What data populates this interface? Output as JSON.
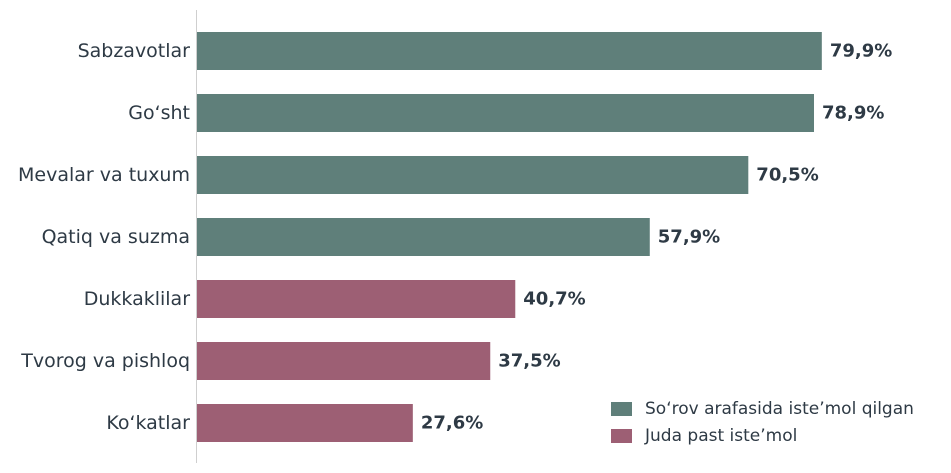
{
  "chart_data": {
    "type": "bar",
    "orientation": "horizontal",
    "categories": [
      "Sabzavotlar",
      "Go‘sht",
      "Mevalar va tuxum",
      "Qatiq va suzma",
      "Dukkaklilar",
      "Tvorog va pishloq",
      "Ko‘katlar"
    ],
    "values": [
      79.9,
      78.9,
      70.5,
      57.9,
      40.7,
      37.5,
      27.6
    ],
    "value_labels": [
      "79,9%",
      "78,9%",
      "70,5%",
      "57,9%",
      "40,7%",
      "37,5%",
      "27,6%"
    ],
    "groups": [
      "high",
      "high",
      "high",
      "high",
      "low",
      "low",
      "low"
    ],
    "legend": [
      {
        "key": "high",
        "label": "So‘rov arafasida iste’mol qilgan",
        "color": "#5f7f7a"
      },
      {
        "key": "low",
        "label": "Juda past iste’mol",
        "color": "#9d5f74"
      }
    ],
    "legend_position": "bottom-right",
    "xlim": [
      0,
      100
    ],
    "grid": false,
    "title": "",
    "xlabel": "",
    "ylabel": ""
  }
}
